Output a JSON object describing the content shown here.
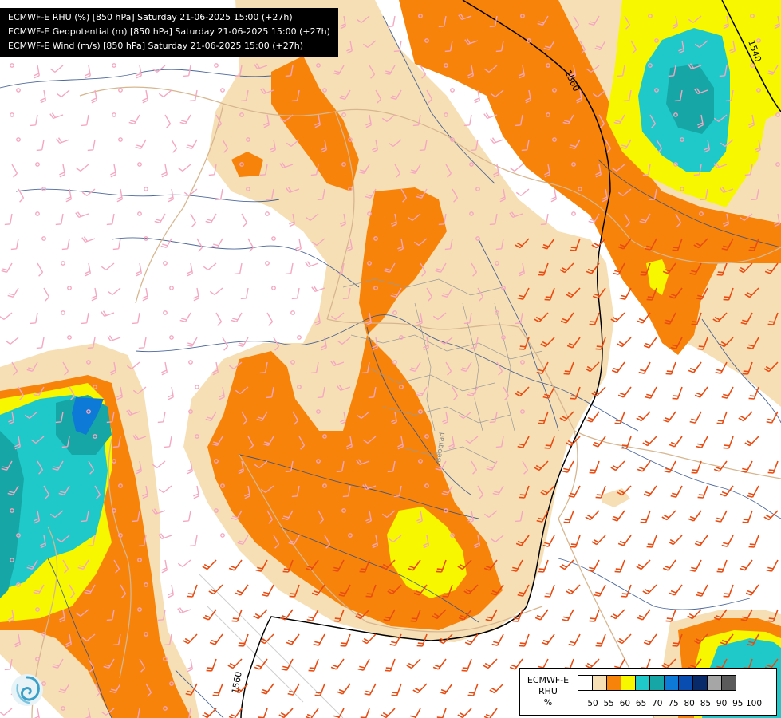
{
  "header": {
    "lines": [
      "ECMWF-E RHU (%) [850 hPa] Saturday 21-06-2025 15:00 (+27h)",
      "ECMWF-E Geopotential (m) [850 hPa] Saturday 21-06-2025 15:00 (+27h)",
      "ECMWF-E Wind (m/s) [850 hPa] Saturday 21-06-2025 15:00 (+27h)"
    ]
  },
  "contours": {
    "labels": [
      "1560",
      "1540",
      "1560"
    ]
  },
  "map_labels": {
    "city": "Beograd"
  },
  "legend": {
    "title_line1": "ECMWF-E",
    "title_line2": "RHU",
    "unit": "%",
    "ticks": [
      "50",
      "55",
      "60",
      "65",
      "70",
      "75",
      "80",
      "85",
      "90",
      "95",
      "100"
    ],
    "colors": [
      "#ffffff",
      "#f7dfb5",
      "#f7830a",
      "#f7f700",
      "#1fc9c9",
      "#17a6a6",
      "#0c7ad6",
      "#0a4db0",
      "#082a6b",
      "#a6a6a6",
      "#5a5a5a"
    ]
  },
  "colors": {
    "rh_55": "#f7dfb5",
    "rh_60": "#f7830a",
    "rh_65": "#f7f700",
    "rh_70": "#1fc9c9",
    "rh_75": "#17a6a6",
    "rh_80": "#0c7ad6",
    "wind_light": "#f4a7c2",
    "wind_strong": "#e84c12",
    "border": "#d7b68f",
    "river": "#2e4e8a"
  },
  "logo_icon": "ecmwf-swirl-icon"
}
